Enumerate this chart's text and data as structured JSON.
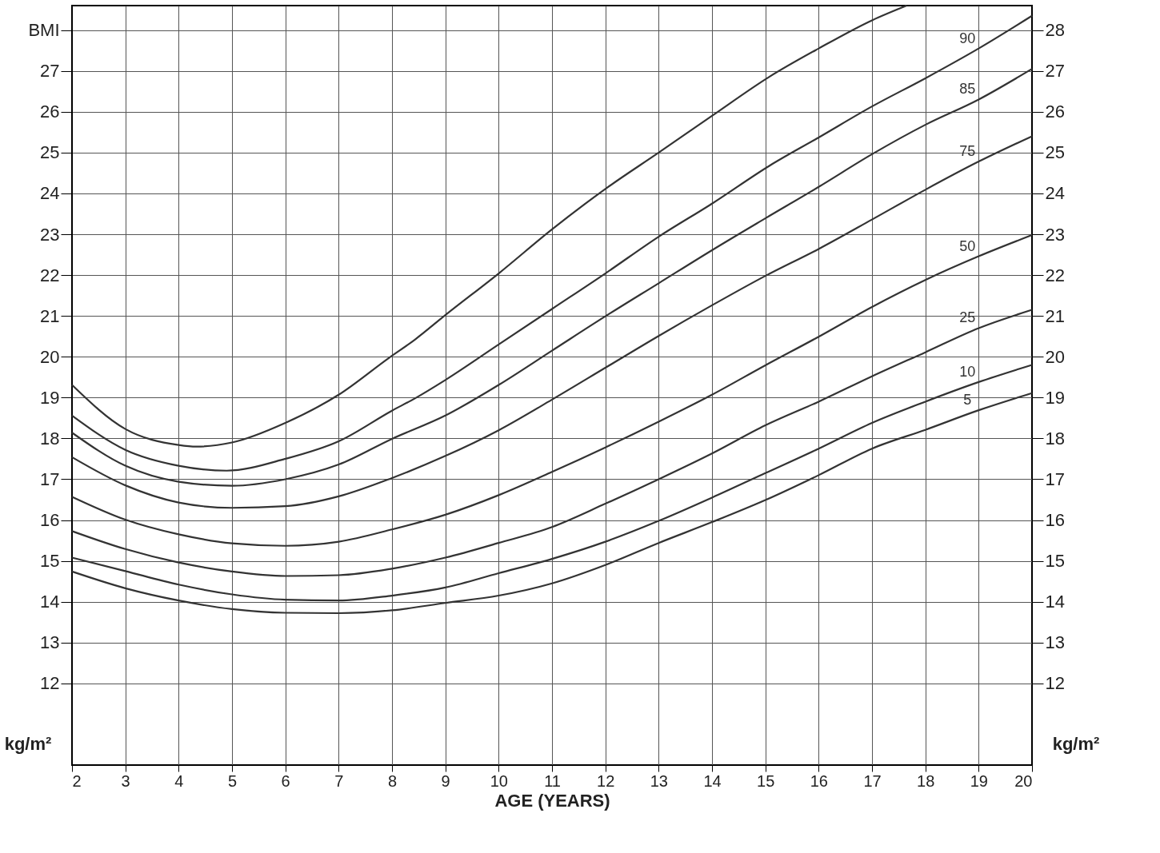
{
  "chart_data": {
    "type": "line",
    "xlabel": "AGE (YEARS)",
    "xlim": [
      2,
      20
    ],
    "xticks": [
      2,
      3,
      4,
      5,
      6,
      7,
      8,
      9,
      10,
      11,
      12,
      13,
      14,
      15,
      16,
      17,
      18,
      19,
      20
    ],
    "ylim": [
      10,
      28.6
    ],
    "yticks": [
      12,
      13,
      14,
      15,
      16,
      17,
      18,
      19,
      20,
      21,
      22,
      23,
      24,
      25,
      26,
      27,
      {
        "value": 28,
        "label": "BMI"
      }
    ],
    "y2lim": [
      10,
      28.6
    ],
    "y2ticks": [
      12,
      13,
      14,
      15,
      16,
      17,
      18,
      19,
      20,
      21,
      22,
      23,
      24,
      25,
      26,
      27,
      28
    ],
    "grid": true,
    "line_style": "solid",
    "annotations": [
      "kg/m²",
      "kg/m²"
    ],
    "series": [
      {
        "color": "#333333",
        "x": [
          2,
          3,
          4,
          4.33,
          5,
          6,
          7,
          7.94,
          8.43,
          9,
          10,
          11,
          12,
          13,
          14,
          15.08,
          16,
          17,
          17.65
        ],
        "values": [
          19.31,
          18.23,
          17.84,
          17.8,
          17.9,
          18.38,
          19.07,
          19.97,
          20.42,
          21.02,
          22.04,
          23.12,
          24.11,
          25.0,
          25.9,
          26.86,
          27.55,
          28.24,
          28.6
        ]
      },
      {
        "name": "90",
        "color": "#333333",
        "x": [
          2,
          3,
          4,
          4.9,
          6,
          7,
          8,
          8.43,
          9,
          10,
          11,
          12,
          13,
          14,
          15.08,
          16,
          17,
          18,
          19,
          20
        ],
        "values": [
          18.56,
          17.72,
          17.33,
          17.21,
          17.5,
          17.93,
          18.68,
          18.98,
          19.43,
          20.3,
          21.17,
          22.04,
          22.94,
          23.75,
          24.68,
          25.37,
          26.13,
          26.82,
          27.55,
          28.35
        ]
      },
      {
        "name": "85",
        "color": "#333333",
        "x": [
          2,
          3,
          4,
          5,
          6,
          7,
          8,
          9,
          10,
          11,
          12,
          13,
          14,
          15,
          16,
          17,
          18,
          19,
          20
        ],
        "values": [
          18.14,
          17.33,
          16.94,
          16.84,
          17.0,
          17.36,
          17.99,
          18.56,
          19.31,
          20.15,
          20.99,
          21.8,
          22.61,
          23.39,
          24.16,
          24.96,
          25.68,
          26.3,
          27.05
        ]
      },
      {
        "name": "75",
        "color": "#333333",
        "x": [
          2,
          3,
          4,
          5,
          6,
          7,
          8,
          9,
          10,
          11,
          12,
          13,
          14,
          15,
          16,
          17,
          18,
          19,
          20
        ],
        "values": [
          17.54,
          16.85,
          16.43,
          16.3,
          16.34,
          16.58,
          17.03,
          17.57,
          18.2,
          18.95,
          19.73,
          20.51,
          21.26,
          21.98,
          22.64,
          23.36,
          24.09,
          24.78,
          25.4
        ]
      },
      {
        "name": "50",
        "color": "#333333",
        "x": [
          2,
          3,
          4,
          5,
          6,
          7,
          8,
          9,
          10,
          11,
          12,
          13,
          14,
          15,
          16,
          17,
          18,
          19,
          20
        ],
        "values": [
          16.57,
          16.01,
          15.65,
          15.43,
          15.37,
          15.47,
          15.77,
          16.13,
          16.61,
          17.18,
          17.78,
          18.41,
          19.07,
          19.79,
          20.49,
          21.22,
          21.88,
          22.46,
          22.98
        ]
      },
      {
        "name": "25",
        "color": "#333333",
        "x": [
          2,
          3,
          4,
          5,
          6,
          7,
          8,
          9,
          10,
          11,
          12,
          13,
          14,
          15,
          16,
          17,
          18,
          19,
          20
        ],
        "values": [
          15.73,
          15.29,
          14.96,
          14.74,
          14.63,
          14.65,
          14.81,
          15.08,
          15.44,
          15.83,
          16.4,
          17.0,
          17.63,
          18.32,
          18.9,
          19.52,
          20.11,
          20.7,
          21.15
        ]
      },
      {
        "name": "10",
        "color": "#333333",
        "x": [
          2,
          3,
          4,
          5,
          6,
          7,
          8,
          9,
          10,
          11,
          12,
          13,
          14,
          15,
          16,
          17,
          18,
          19,
          20
        ],
        "values": [
          15.08,
          14.75,
          14.42,
          14.18,
          14.05,
          14.03,
          14.15,
          14.35,
          14.7,
          15.05,
          15.47,
          15.98,
          16.55,
          17.15,
          17.75,
          18.38,
          18.9,
          19.38,
          19.8
        ]
      },
      {
        "name": "5",
        "color": "#333333",
        "x": [
          2,
          3,
          4,
          5,
          6,
          7,
          8,
          9,
          10,
          11,
          12,
          13,
          14,
          15,
          16,
          17,
          18,
          19,
          20
        ],
        "values": [
          14.74,
          14.33,
          14.03,
          13.82,
          13.73,
          13.72,
          13.79,
          13.97,
          14.15,
          14.45,
          14.9,
          15.44,
          15.95,
          16.49,
          17.1,
          17.75,
          18.21,
          18.69,
          19.11
        ]
      }
    ]
  }
}
